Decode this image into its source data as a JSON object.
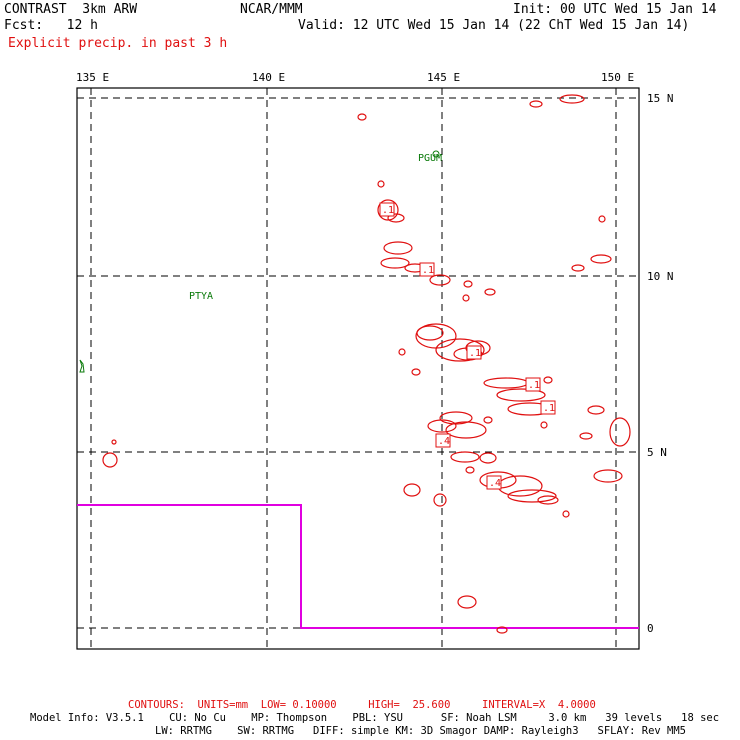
{
  "header": {
    "left_line1": "CONTRAST  3km ARW",
    "left_line2": "Fcst:   12 h",
    "center": "NCAR/MMM",
    "init": "Init: 00 UTC Wed 15 Jan 14",
    "valid": "Valid: 12 UTC Wed 15 Jan 14 (22 ChT Wed 15 Jan 14)",
    "field": "Explicit precip. in past 3 h"
  },
  "map": {
    "lon_labels": [
      "135 E",
      "140 E",
      "145 E",
      "150 E"
    ],
    "lat_labels": [
      "15 N",
      "10 N",
      "5 N",
      "0"
    ],
    "stations": [
      "PGUM",
      "PTYA"
    ],
    "contour_labels": [
      ".1",
      ".1",
      ".1",
      ".1",
      ".1",
      ".4",
      ".4"
    ],
    "colors": {
      "contour": "#e01010",
      "boundary": "#e000e0",
      "station": "#0a7a0a"
    }
  },
  "footer": {
    "contours": "CONTOURS:  UNITS=mm  LOW= 0.10000     HIGH=  25.600     INTERVAL=X  4.0000",
    "model_line1": "Model Info: V3.5.1    CU: No Cu    MP: Thompson    PBL: YSU      SF: Noah LSM     3.0 km   39 levels   18 sec",
    "model_line2": "LW: RRTMG    SW: RRTMG   DIFF: simple KM: 3D Smagor DAMP: Rayleigh3   SFLAY: Rev MM5"
  }
}
